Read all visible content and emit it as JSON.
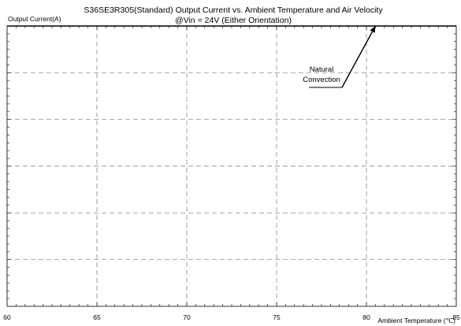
{
  "chart_data": {
    "type": "line",
    "title": "S36SE3R305(Standard)  Output Current vs. Ambient Temperature and Air Velocity",
    "subtitle": "@Vin = 24V (Either Orientation)",
    "ylabel": "Output Current(A)",
    "xlabel": "Ambient Temperature (℃)",
    "xlim": [
      60,
      85
    ],
    "ylim": [
      0,
      1.0
    ],
    "x_ticks": [
      60,
      65,
      70,
      75,
      80,
      85
    ],
    "y_gridlines": 6,
    "grid": true,
    "series": [
      {
        "x": [
          60,
          85
        ],
        "y": [
          1.0,
          1.0
        ],
        "color": "#000000"
      }
    ],
    "annotations": [
      {
        "lines": [
          "Natural",
          "Convection"
        ],
        "arrow_to": [
          80.5,
          1.0
        ]
      }
    ]
  }
}
